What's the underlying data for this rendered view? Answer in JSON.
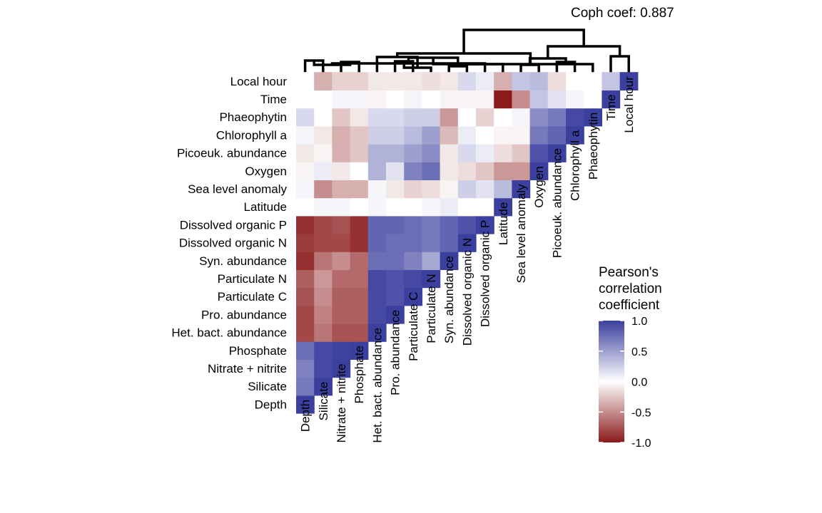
{
  "coph_label": "Coph coef: 0.887",
  "legend": {
    "title_lines": [
      "Pearson's",
      "correlation",
      "coefficient"
    ],
    "ticks": [
      1.0,
      0.5,
      0.0,
      -0.5,
      -1.0
    ],
    "tick_labels": [
      "1.0",
      "0.5",
      "0.0",
      "-0.5",
      "-1.0"
    ],
    "colors": {
      "high": "#3b3f9e",
      "mid": "#ffffff",
      "low": "#8b1a1a"
    }
  },
  "chart_data": {
    "type": "heatmap",
    "variables": [
      "Depth",
      "Silicate",
      "Nitrate + nitrite",
      "Phosphate",
      "Het. bact. abundance",
      "Pro. abundance",
      "Particulate C",
      "Particulate N",
      "Syn. abundance",
      "Dissolved organic N",
      "Dissolved organic P",
      "Latitude",
      "Sea level anomaly",
      "Oxygen",
      "Picoeuk. abundance",
      "Chlorophyll a",
      "Phaeophytin",
      "Time",
      "Local hour"
    ],
    "row_labels_top_to_bottom": [
      "Local hour",
      "Time",
      "Phaeophytin",
      "Chlorophyll a",
      "Picoeuk. abundance",
      "Oxygen",
      "Sea level anomaly",
      "Latitude",
      "Dissolved organic P",
      "Dissolved organic N",
      "Syn. abundance",
      "Particulate N",
      "Particulate C",
      "Pro. abundance",
      "Het. bact. abundance",
      "Phosphate",
      "Nitrate + nitrite",
      "Silicate",
      "Depth"
    ],
    "layout": "lower triangle; each row lists correlations with variables in order from Depth up to and including the row's own variable (diagonal = 1)",
    "correlations": {
      "Depth": [
        1
      ],
      "Silicate": [
        0.7,
        1
      ],
      "Nitrate + nitrite": [
        0.65,
        0.95,
        1
      ],
      "Phosphate": [
        0.75,
        0.95,
        0.98,
        1
      ],
      "Het. bact. abundance": [
        -0.8,
        -0.6,
        -0.75,
        -0.75,
        1
      ],
      "Pro. abundance": [
        -0.8,
        -0.55,
        -0.7,
        -0.7,
        0.95,
        1
      ],
      "Particulate C": [
        -0.75,
        -0.5,
        -0.7,
        -0.7,
        0.95,
        0.9,
        1
      ],
      "Particulate N": [
        -0.7,
        -0.45,
        -0.65,
        -0.65,
        0.95,
        0.9,
        0.95,
        1
      ],
      "Syn. abundance": [
        -0.9,
        -0.6,
        -0.5,
        -0.65,
        0.75,
        0.75,
        0.65,
        0.45,
        1
      ],
      "Dissolved organic N": [
        -0.85,
        -0.8,
        -0.8,
        -0.9,
        0.8,
        0.75,
        0.75,
        0.7,
        0.8,
        1
      ],
      "Dissolved organic P": [
        -0.9,
        -0.8,
        -0.75,
        -0.9,
        0.8,
        0.8,
        0.75,
        0.7,
        0.8,
        0.9,
        1
      ],
      "Latitude": [
        0,
        0.05,
        0.05,
        0,
        0.05,
        0,
        0,
        0.05,
        0.1,
        0,
        0,
        1
      ],
      "Sea level anomaly": [
        0.05,
        -0.5,
        -0.35,
        -0.35,
        0.05,
        -0.1,
        -0.2,
        -0.15,
        -0.05,
        0.25,
        0.15,
        0.35,
        1
      ],
      "Oxygen": [
        -0.05,
        0.1,
        -0.1,
        0,
        0.4,
        0.15,
        0.65,
        0.75,
        -0.1,
        -0.15,
        -0.25,
        -0.45,
        -0.45,
        1
      ],
      "Picoeuk. abundance": [
        -0.1,
        -0.05,
        -0.35,
        -0.25,
        0.4,
        0.4,
        0.5,
        0.6,
        -0.1,
        0.2,
        0.1,
        -0.15,
        -0.25,
        0.9,
        1
      ],
      "Chlorophyll a": [
        0.05,
        -0.1,
        -0.35,
        -0.25,
        0.25,
        0.25,
        0.35,
        0.5,
        -0.3,
        0.1,
        0,
        -0.05,
        -0.05,
        0.7,
        0.8,
        1
      ],
      "Phaeophytin": [
        0.2,
        0,
        -0.25,
        -0.1,
        0.2,
        0.2,
        0.25,
        0.25,
        -0.45,
        0,
        -0.2,
        0,
        0.05,
        0.6,
        0.7,
        0.95,
        1
      ],
      "Time": [
        0,
        0,
        0.05,
        0.05,
        -0.05,
        0,
        0.05,
        0,
        -0.05,
        -0.05,
        -0.05,
        -1,
        -0.5,
        0.3,
        0.15,
        0.05,
        0,
        1
      ],
      "Local hour": [
        0,
        -0.35,
        -0.2,
        -0.2,
        -0.1,
        -0.1,
        -0.1,
        -0.15,
        -0.1,
        0.2,
        0.1,
        -0.35,
        0.3,
        0.35,
        -0.15,
        0,
        0,
        0.3,
        1
      ]
    }
  }
}
